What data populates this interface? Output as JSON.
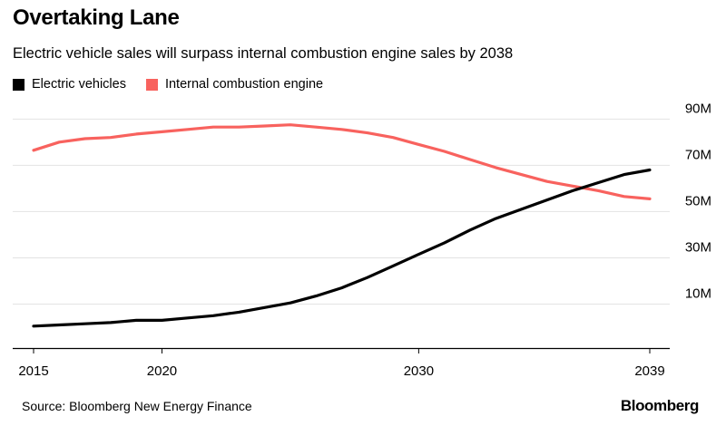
{
  "chart_data": {
    "type": "line",
    "title": "Overtaking Lane",
    "subtitle": "Electric vehicle sales will surpass internal combustion engine sales by 2038",
    "x": [
      2015,
      2016,
      2017,
      2018,
      2019,
      2020,
      2021,
      2022,
      2023,
      2024,
      2025,
      2026,
      2027,
      2028,
      2029,
      2030,
      2031,
      2032,
      2033,
      2034,
      2035,
      2036,
      2037,
      2038,
      2039
    ],
    "series": [
      {
        "name": "Electric vehicles",
        "color": "#000000",
        "values": [
          0.5,
          1,
          1.5,
          2,
          3,
          3,
          4,
          5,
          6.5,
          8.5,
          10.5,
          13.5,
          17,
          21.5,
          26.5,
          31.5,
          36.5,
          42,
          47,
          51,
          55,
          59,
          62.5,
          66,
          68
        ]
      },
      {
        "name": "Internal combustion engine",
        "color": "#f8625e",
        "values": [
          76.5,
          80,
          81.5,
          82,
          83.5,
          84.5,
          85.5,
          86.5,
          86.5,
          87,
          87.5,
          86.5,
          85.5,
          84,
          82,
          79,
          76,
          72.5,
          69,
          66,
          63,
          61,
          59,
          56.5,
          55.5
        ]
      }
    ],
    "x_ticks": [
      "2015",
      "2020",
      "2030",
      "2039"
    ],
    "x_tick_values": [
      2015,
      2020,
      2030,
      2039
    ],
    "y_ticks": [
      "10M",
      "30M",
      "50M",
      "70M",
      "90M"
    ],
    "y_tick_values": [
      10,
      30,
      50,
      70,
      90
    ],
    "xlim": [
      2015,
      2039
    ],
    "ylim": [
      -9,
      96
    ],
    "grid": true,
    "legend_position": "top-left"
  },
  "source": "Source: Bloomberg New Energy Finance",
  "brand": "Bloomberg"
}
